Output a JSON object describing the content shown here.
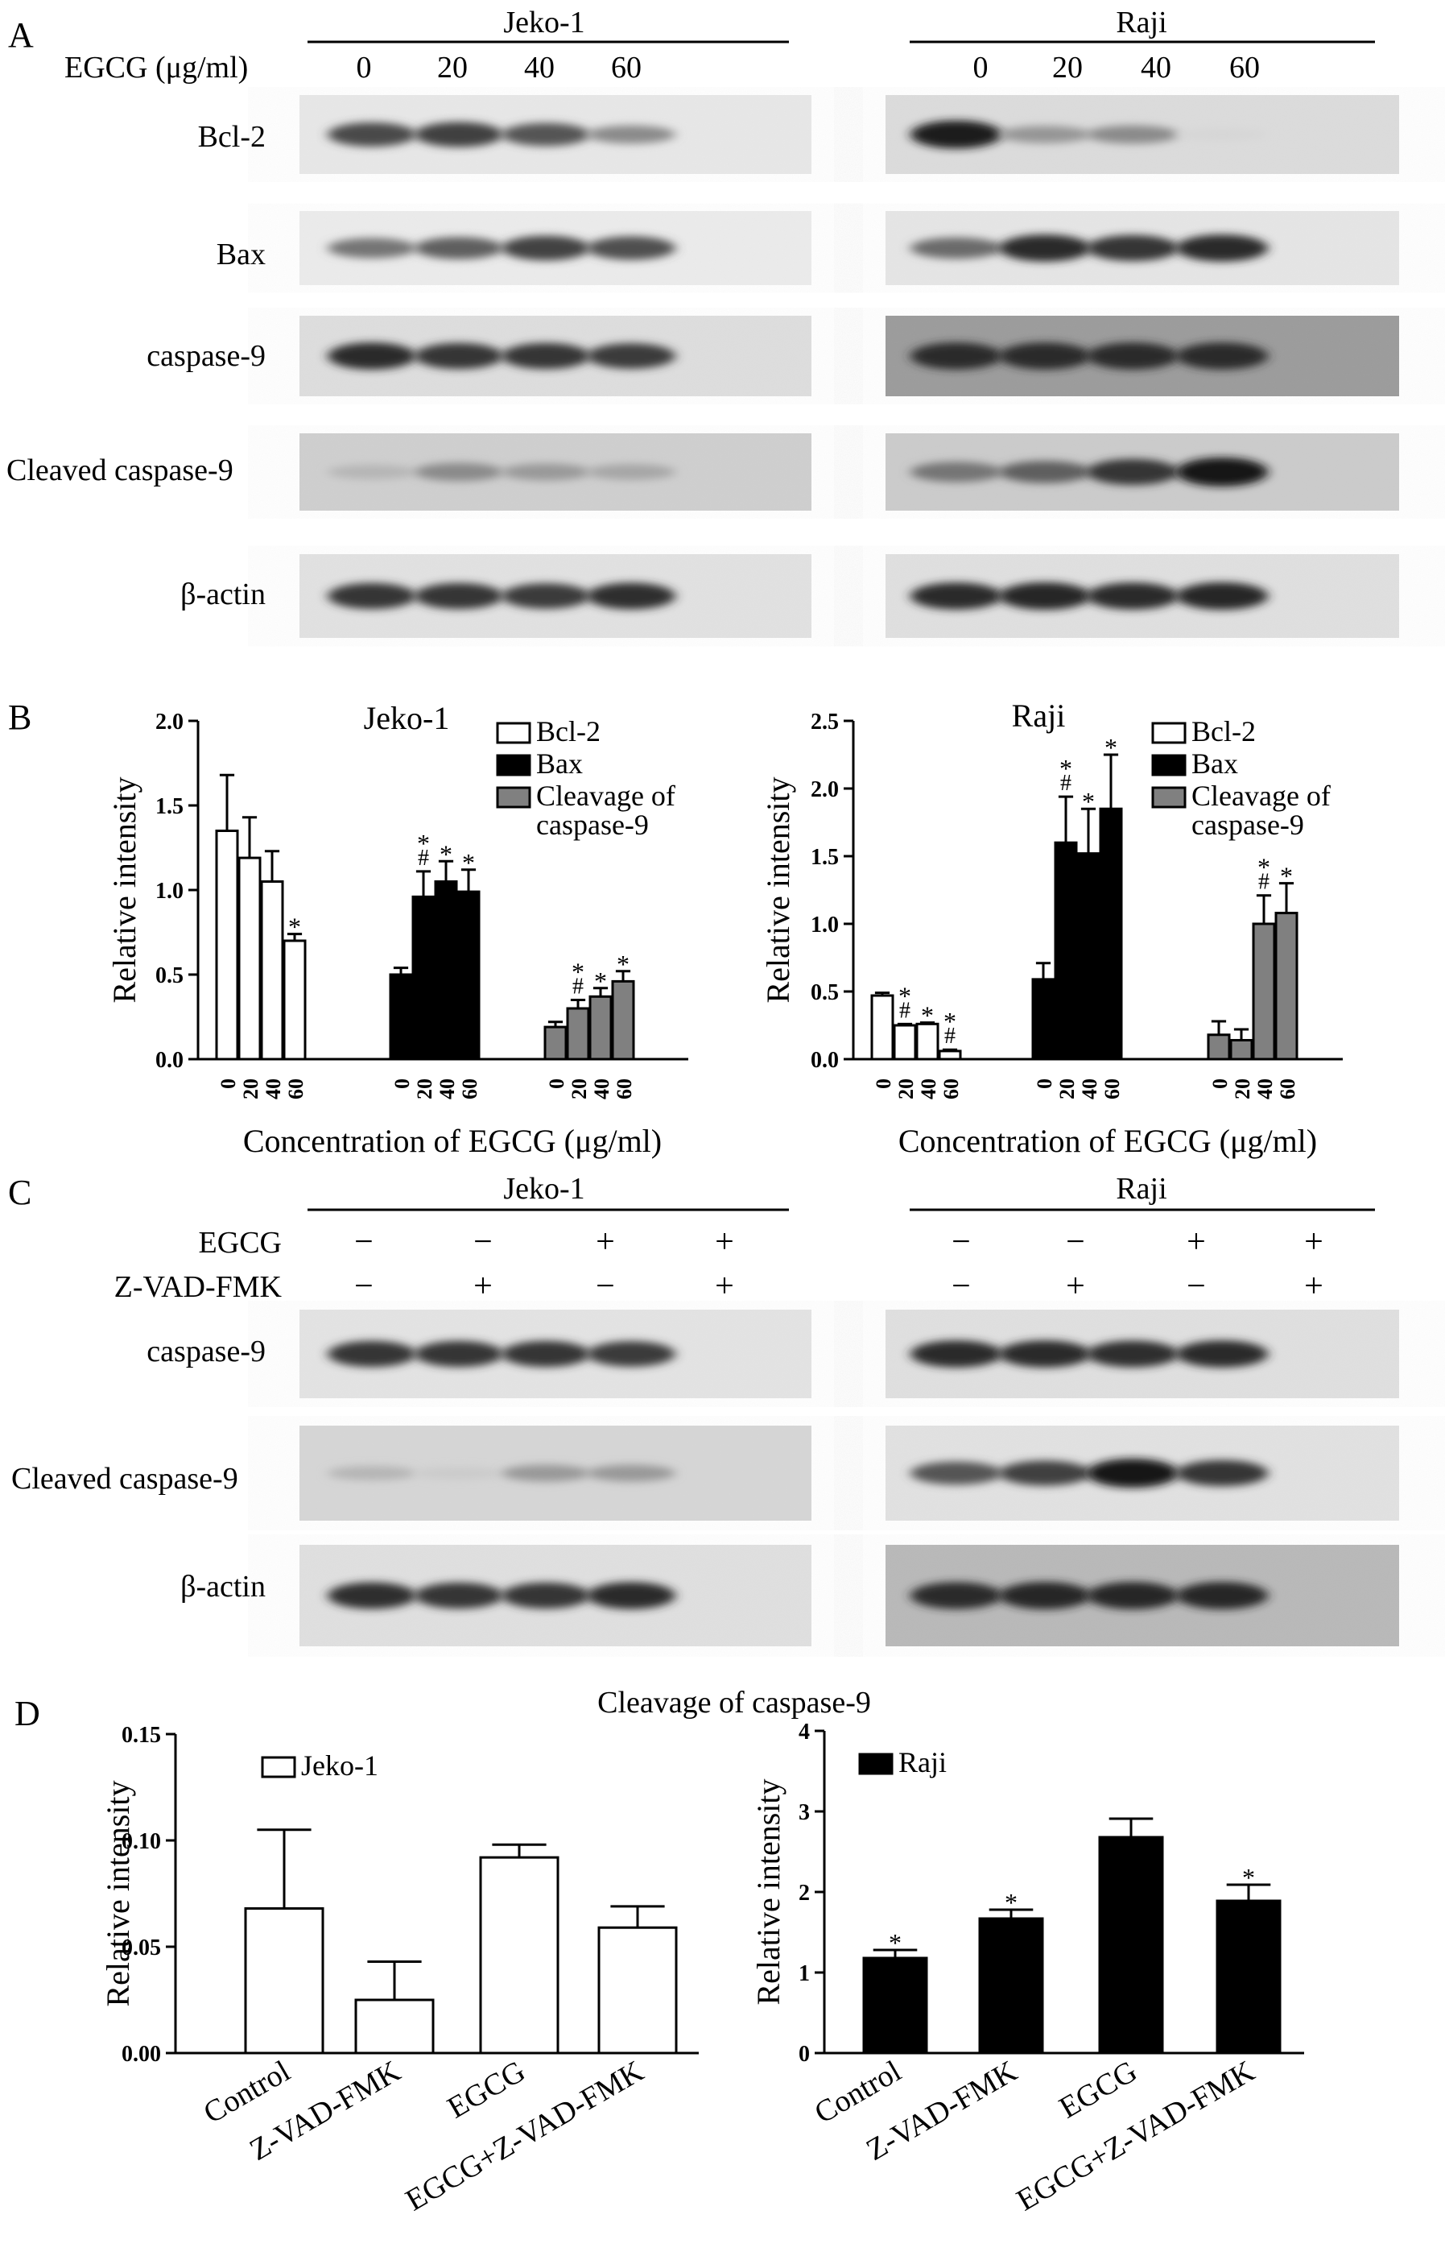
{
  "panels": {
    "A": "A",
    "B": "B",
    "C": "C",
    "D": "D"
  },
  "panel_a": {
    "treatment_label": "EGCG (μg/ml)",
    "cell_lines": [
      "Jeko-1",
      "Raji"
    ],
    "doses": [
      "0",
      "20",
      "40",
      "60"
    ],
    "bands": [
      "Bcl-2",
      "Bax",
      "caspase-9",
      "Cleaved caspase-9",
      "β-actin"
    ]
  },
  "panel_c": {
    "cell_lines": [
      "Jeko-1",
      "Raji"
    ],
    "treatments": [
      {
        "label": "EGCG",
        "signs": [
          "−",
          "−",
          "+",
          "+"
        ]
      },
      {
        "label": "Z-VAD-FMK",
        "signs": [
          "−",
          "+",
          "−",
          "+"
        ]
      }
    ],
    "bands": [
      "caspase-9",
      "Cleaved caspase-9",
      "β-actin"
    ]
  },
  "panel_d": {
    "title": "Cleavage of caspase-9"
  },
  "chart_data": [
    {
      "id": "B-Jeko-1",
      "type": "bar",
      "title": "Jeko-1",
      "xlabel": "Concentration of EGCG (μg/ml)",
      "ylabel": "Relative intensity",
      "ylim": [
        0,
        2.0
      ],
      "yticks": [
        "0.0",
        "0.5",
        "1.0",
        "1.5",
        "2.0"
      ],
      "categories": [
        "0",
        "20",
        "40",
        "60"
      ],
      "legend_position": "top-right",
      "series": [
        {
          "name": "Bcl-2",
          "fill": "#ffffff",
          "values": [
            1.35,
            1.19,
            1.05,
            0.7
          ],
          "errors": [
            0.33,
            0.24,
            0.18,
            0.04
          ],
          "marks": [
            "",
            "",
            "",
            "*"
          ]
        },
        {
          "name": "Bax",
          "fill": "#000000",
          "values": [
            0.5,
            0.96,
            1.05,
            0.99
          ],
          "errors": [
            0.04,
            0.15,
            0.12,
            0.13
          ],
          "marks": [
            "",
            "*\n#",
            "*",
            "*"
          ]
        },
        {
          "name": "Cleavage of\ncaspase-9",
          "fill": "#808080",
          "values": [
            0.19,
            0.3,
            0.37,
            0.46
          ],
          "errors": [
            0.03,
            0.05,
            0.05,
            0.06
          ],
          "marks": [
            "",
            "*\n#",
            "*",
            "*"
          ]
        }
      ]
    },
    {
      "id": "B-Raji",
      "type": "bar",
      "title": "Raji",
      "xlabel": "Concentration of EGCG (μg/ml)",
      "ylabel": "Relative intensity",
      "ylim": [
        0,
        2.5
      ],
      "yticks": [
        "0.0",
        "0.5",
        "1.0",
        "1.5",
        "2.0",
        "2.5"
      ],
      "categories": [
        "0",
        "20",
        "40",
        "60"
      ],
      "legend_position": "top-right",
      "series": [
        {
          "name": "Bcl-2",
          "fill": "#ffffff",
          "values": [
            0.47,
            0.25,
            0.26,
            0.06
          ],
          "errors": [
            0.02,
            0.01,
            0.01,
            0.01
          ],
          "marks": [
            "",
            "*\n#",
            "*",
            "*\n#"
          ]
        },
        {
          "name": "Bax",
          "fill": "#000000",
          "values": [
            0.59,
            1.6,
            1.52,
            1.85
          ],
          "errors": [
            0.12,
            0.34,
            0.33,
            0.4
          ],
          "marks": [
            "",
            "*\n#",
            "*",
            "*"
          ]
        },
        {
          "name": "Cleavage of\ncaspase-9",
          "fill": "#808080",
          "values": [
            0.18,
            0.14,
            1.0,
            1.08
          ],
          "errors": [
            0.1,
            0.08,
            0.21,
            0.22
          ],
          "marks": [
            "",
            "",
            "*\n#",
            "*"
          ]
        }
      ]
    },
    {
      "id": "D-Jeko-1",
      "type": "bar",
      "title": "",
      "xlabel": "",
      "ylabel": "Relative intensity",
      "ylim": [
        0,
        0.15
      ],
      "yticks": [
        "0.00",
        "0.05",
        "0.10",
        "0.15"
      ],
      "categories": [
        "Control",
        "Z-VAD-FMK",
        "EGCG",
        "EGCG+Z-VAD-FMK"
      ],
      "legend_position": "top-left",
      "series": [
        {
          "name": "Jeko-1",
          "fill": "#ffffff",
          "values": [
            0.068,
            0.025,
            0.092,
            0.059
          ],
          "errors": [
            0.037,
            0.018,
            0.006,
            0.01
          ],
          "marks": [
            "",
            "",
            "",
            ""
          ]
        }
      ]
    },
    {
      "id": "D-Raji",
      "type": "bar",
      "title": "",
      "xlabel": "",
      "ylabel": "Relative intensity",
      "ylim": [
        0,
        4
      ],
      "yticks": [
        "0",
        "1",
        "2",
        "3",
        "4"
      ],
      "categories": [
        "Control",
        "Z-VAD-FMK",
        "EGCG",
        "EGCG+Z-VAD-FMK"
      ],
      "legend_position": "top-left",
      "series": [
        {
          "name": "Raji",
          "fill": "#000000",
          "values": [
            1.18,
            1.67,
            2.68,
            1.89
          ],
          "errors": [
            0.1,
            0.11,
            0.23,
            0.2
          ],
          "marks": [
            "*",
            "*",
            "",
            "*"
          ]
        }
      ]
    }
  ]
}
